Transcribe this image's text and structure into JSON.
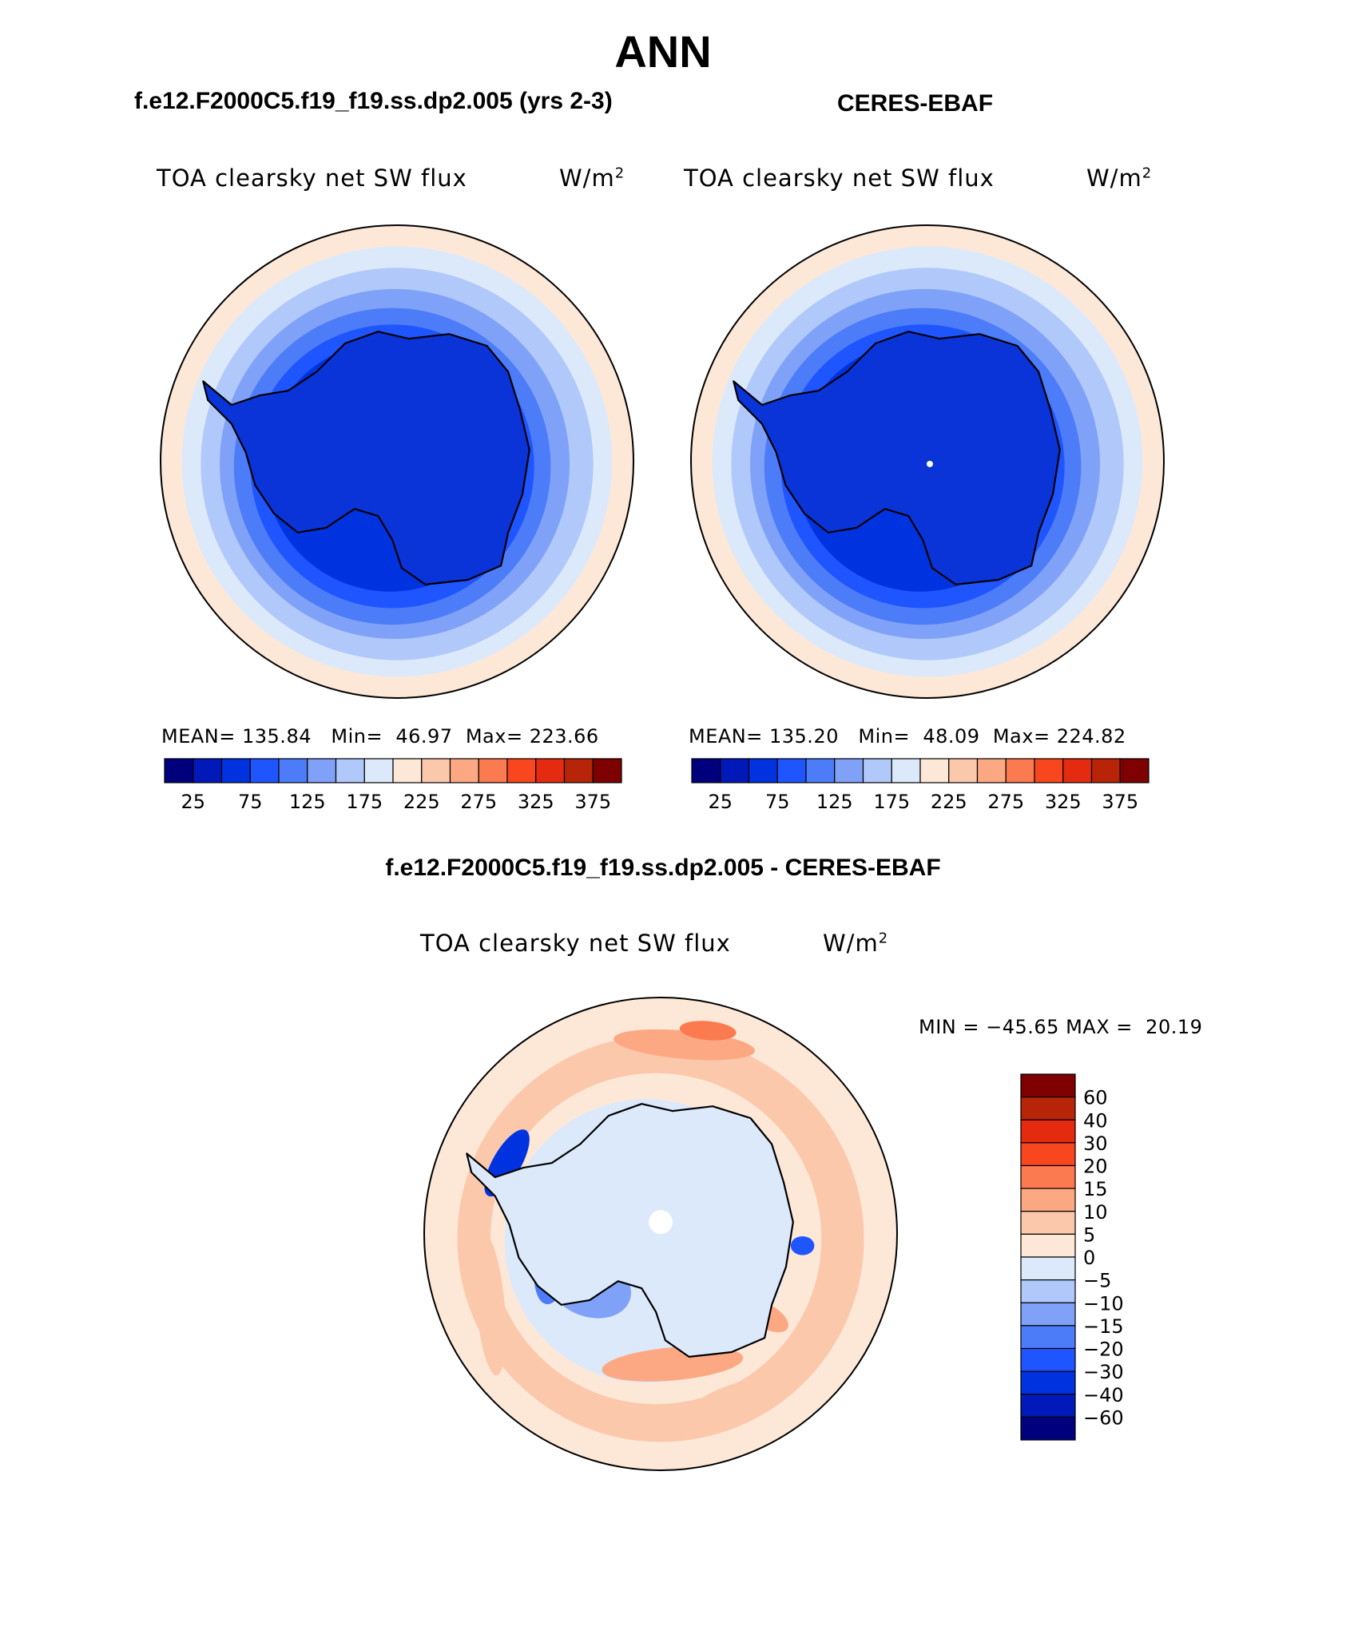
{
  "page": {
    "title": "ANN",
    "case_name": "f.e12.F2000C5.f19_f19.ss.dp2.005 (yrs 2-3)",
    "obs_name": "CERES-EBAF",
    "diff_title": "f.e12.F2000C5.f19_f19.ss.dp2.005 - CERES-EBAF"
  },
  "colors": {
    "main_scale": [
      "#00007f",
      "#0019b8",
      "#0033e0",
      "#1f55ff",
      "#4d7cf8",
      "#7fa2f8",
      "#b0c8fa",
      "#dce9fb",
      "#fde8d8",
      "#fcc8ac",
      "#fca983",
      "#fc7a4f",
      "#f8461e",
      "#e42b10",
      "#b82407",
      "#7f0000"
    ],
    "diff_scale": [
      "#00007f",
      "#0019b8",
      "#0033e0",
      "#1f55ff",
      "#4d7cf8",
      "#7fa2f8",
      "#b0c8fa",
      "#dce9fb",
      "#fde8d8",
      "#fcc8ac",
      "#fca983",
      "#fc7a4f",
      "#f8461e",
      "#e42b10",
      "#b82407",
      "#7f0000"
    ],
    "antarctica_model": "#0a34d8",
    "antarctica_obs": "#0a34d8",
    "antarctica_diff": "#dce9fb"
  },
  "chart_data": [
    {
      "type": "heatmap",
      "projection": "south-polar-stereographic",
      "title_left": "TOA clearsky net SW flux",
      "units_base": "W/m",
      "units_exp": "2",
      "stats": {
        "mean_label": "MEAN=",
        "mean": "135.84",
        "min_label": "Min=",
        "min": "46.97",
        "max_label": "Max=",
        "max": "223.66"
      },
      "colorbar_ticks": [
        "25",
        "75",
        "125",
        "175",
        "225",
        "275",
        "325",
        "375"
      ],
      "contour_levels": [
        25,
        50,
        75,
        100,
        125,
        150,
        175,
        200,
        225,
        250,
        275,
        300,
        325,
        350,
        375
      ],
      "rings": [
        {
          "level_index": 8,
          "value": 230
        },
        {
          "level_index": 7,
          "value": 210
        },
        {
          "level_index": 6,
          "value": 180
        },
        {
          "level_index": 5,
          "value": 160
        },
        {
          "level_index": 4,
          "value": 130
        },
        {
          "level_index": 3,
          "value": 110
        },
        {
          "level_index": 2,
          "value": 70
        }
      ]
    },
    {
      "type": "heatmap",
      "projection": "south-polar-stereographic",
      "title_left": "TOA clearsky net SW flux",
      "units_base": "W/m",
      "units_exp": "2",
      "stats": {
        "mean_label": "MEAN=",
        "mean": "135.20",
        "min_label": "Min=",
        "min": "48.09",
        "max_label": "Max=",
        "max": "224.82"
      },
      "colorbar_ticks": [
        "25",
        "75",
        "125",
        "175",
        "225",
        "275",
        "325",
        "375"
      ],
      "contour_levels": [
        25,
        50,
        75,
        100,
        125,
        150,
        175,
        200,
        225,
        250,
        275,
        300,
        325,
        350,
        375
      ],
      "rings": [
        {
          "level_index": 8,
          "value": 230
        },
        {
          "level_index": 7,
          "value": 210
        },
        {
          "level_index": 6,
          "value": 180
        },
        {
          "level_index": 5,
          "value": 160
        },
        {
          "level_index": 4,
          "value": 130
        },
        {
          "level_index": 3,
          "value": 110
        },
        {
          "level_index": 2,
          "value": 70
        }
      ]
    },
    {
      "type": "heatmap",
      "projection": "south-polar-stereographic",
      "title_left": "TOA clearsky net SW flux",
      "units_base": "W/m",
      "units_exp": "2",
      "minmax": {
        "min_label": "MIN =",
        "min": "−45.65",
        "max_label": "MAX =",
        "max": "20.19"
      },
      "colorbar_ticks": [
        "60",
        "40",
        "30",
        "20",
        "15",
        "10",
        "5",
        "0",
        "−5",
        "−10",
        "−15",
        "−20",
        "−30",
        "−40",
        "−60"
      ],
      "contour_levels": [
        -60,
        -40,
        -30,
        -20,
        -15,
        -10,
        -5,
        0,
        5,
        10,
        15,
        20,
        30,
        40,
        60
      ]
    }
  ]
}
